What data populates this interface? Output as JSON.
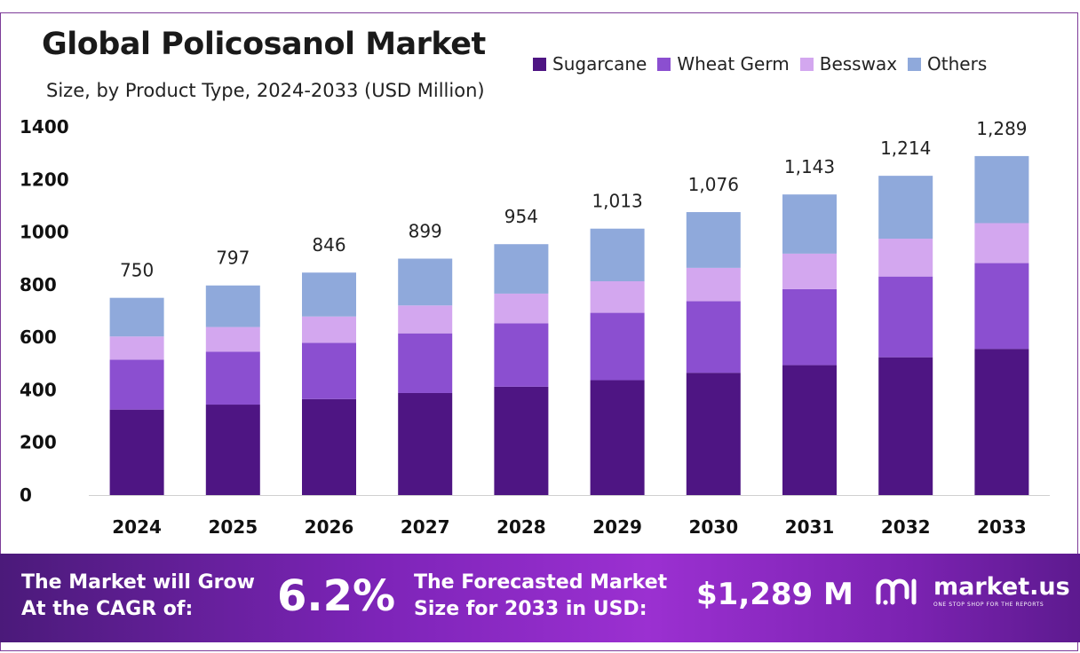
{
  "header": {
    "title": "Global Policosanol Market",
    "subtitle": "Size, by Product Type, 2024-2033 (USD Million)"
  },
  "colors": {
    "sugarcane": "#4e1583",
    "wheat_germ": "#8b4fd0",
    "besswax": "#d3a7ef",
    "others": "#8fa9db",
    "axis_text": "#111111",
    "footer_start": "#4b1a7a",
    "footer_end": "#9b30d1"
  },
  "chart_data": {
    "type": "bar",
    "stacked": true,
    "categories": [
      "2024",
      "2025",
      "2026",
      "2027",
      "2028",
      "2029",
      "2030",
      "2031",
      "2032",
      "2033"
    ],
    "series": [
      {
        "name": "Sugarcane",
        "values": [
          325,
          344,
          365,
          388,
          412,
          437,
          465,
          494,
          524,
          556
        ]
      },
      {
        "name": "Wheat Germ",
        "values": [
          190,
          201,
          214,
          227,
          241,
          256,
          272,
          289,
          307,
          326
        ]
      },
      {
        "name": "Besswax",
        "values": [
          88,
          94,
          100,
          106,
          113,
          120,
          127,
          135,
          144,
          152
        ]
      },
      {
        "name": "Others",
        "values": [
          147,
          158,
          167,
          178,
          188,
          200,
          212,
          225,
          239,
          255
        ]
      }
    ],
    "totals": [
      750,
      797,
      846,
      899,
      954,
      1013,
      1076,
      1143,
      1214,
      1289
    ],
    "total_labels": [
      "750",
      "797",
      "846",
      "899",
      "954",
      "1,013",
      "1,076",
      "1,143",
      "1,214",
      "1,289"
    ],
    "yticks": [
      0,
      200,
      400,
      600,
      800,
      1000,
      1200,
      1400
    ],
    "ylim": [
      0,
      1400
    ],
    "grid": false,
    "legend_position": "top-right"
  },
  "footer": {
    "cagr_label_line1": "The Market will Grow",
    "cagr_label_line2": "At the CAGR of:",
    "cagr_value": "6.2%",
    "forecast_label_line1": "The Forecasted Market",
    "forecast_label_line2": "Size for 2033 in USD:",
    "forecast_value": "$1,289 M",
    "logo_name": "market.us",
    "logo_tagline": "ONE STOP SHOP FOR THE REPORTS"
  }
}
